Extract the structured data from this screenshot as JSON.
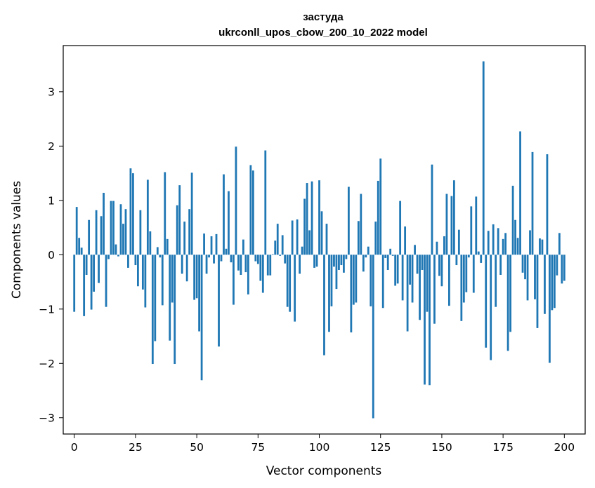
{
  "chart_data": {
    "type": "bar",
    "title": "застуда",
    "subtitle": "ukrconll_upos_cbow_200_10_2022 model",
    "xlabel": "Vector components",
    "ylabel": "Components values",
    "xlim": [
      -4.5,
      208.5
    ],
    "ylim": [
      -3.3,
      3.85
    ],
    "xticks": [
      0,
      25,
      50,
      75,
      100,
      125,
      150,
      175,
      200
    ],
    "yticks": [
      -3,
      -2,
      -1,
      0,
      1,
      2,
      3
    ],
    "grid": false,
    "bar_color": "#1f77b4",
    "values": [
      -1.05,
      0.88,
      0.31,
      0.13,
      -1.13,
      -0.37,
      0.64,
      -1.01,
      -0.68,
      0.82,
      -0.52,
      0.71,
      1.14,
      -0.96,
      -0.08,
      0.99,
      0.99,
      0.19,
      -0.03,
      0.93,
      0.57,
      0.84,
      -0.24,
      1.59,
      1.5,
      -0.19,
      -0.58,
      0.82,
      -0.64,
      -0.97,
      1.38,
      0.43,
      -2.01,
      -1.59,
      0.14,
      -0.05,
      -0.93,
      1.52,
      0.29,
      -1.58,
      -0.88,
      -2.01,
      0.91,
      1.28,
      -0.35,
      0.61,
      -0.49,
      0.84,
      1.51,
      -0.83,
      -0.8,
      -1.41,
      -2.31,
      0.39,
      -0.35,
      -0.05,
      0.34,
      -0.16,
      0.38,
      -1.69,
      -0.12,
      1.48,
      0.11,
      1.17,
      -0.14,
      -0.92,
      1.99,
      -0.29,
      -0.37,
      0.28,
      -0.32,
      -0.73,
      1.65,
      1.55,
      -0.12,
      -0.17,
      -0.48,
      -0.7,
      1.92,
      -0.38,
      -0.38,
      0.01,
      0.26,
      0.57,
      -0.02,
      0.36,
      -0.16,
      -0.96,
      -1.05,
      0.63,
      -1.23,
      0.65,
      -0.35,
      0.15,
      1.03,
      1.32,
      0.45,
      1.35,
      -0.24,
      -0.22,
      1.37,
      0.8,
      -1.85,
      0.57,
      -1.42,
      -0.95,
      -0.22,
      -0.63,
      -0.28,
      -0.19,
      -0.33,
      -0.08,
      1.25,
      -1.43,
      -0.92,
      -0.88,
      0.62,
      1.12,
      -0.31,
      -0.05,
      0.15,
      -0.95,
      -3.01,
      0.61,
      1.36,
      1.77,
      -0.98,
      -0.06,
      -0.28,
      0.11,
      -0.02,
      -0.57,
      -0.53,
      0.99,
      -0.84,
      0.52,
      -1.41,
      -0.55,
      -0.88,
      0.18,
      -0.35,
      -1.2,
      -0.28,
      -2.39,
      -1.05,
      -2.4,
      1.66,
      -1.27,
      0.24,
      -0.39,
      -0.58,
      0.34,
      1.12,
      -0.94,
      1.08,
      1.37,
      -0.19,
      0.46,
      -1.22,
      -0.88,
      -0.69,
      -0.05,
      0.89,
      -0.7,
      1.07,
      0.06,
      -0.15,
      3.56,
      -1.71,
      0.44,
      -1.94,
      0.56,
      -0.96,
      0.49,
      -0.37,
      0.29,
      0.4,
      -1.77,
      -1.42,
      1.27,
      0.64,
      0.31,
      2.27,
      -0.33,
      -0.45,
      -0.84,
      0.45,
      1.89,
      -0.82,
      -1.35,
      0.3,
      0.28,
      -1.09,
      1.85,
      -1.99,
      -1.02,
      -0.98,
      -0.38,
      0.4,
      -0.53,
      -0.48
    ]
  }
}
